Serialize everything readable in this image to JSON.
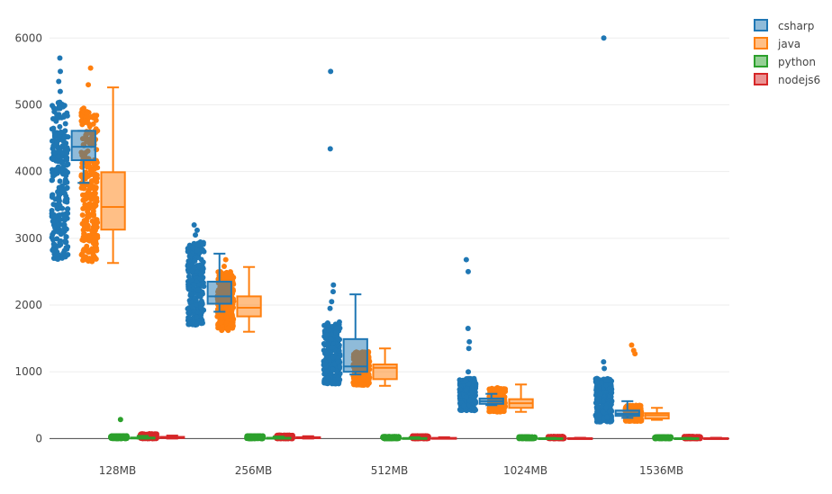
{
  "chart_data": {
    "type": "box",
    "categories": [
      "128MB",
      "256MB",
      "512MB",
      "1024MB",
      "1536MB"
    ],
    "ylim": [
      -170,
      6300
    ],
    "yticks": [
      0,
      1000,
      2000,
      3000,
      4000,
      5000,
      6000
    ],
    "ytick_labels": [
      "0",
      "1000",
      "2000",
      "3000",
      "4000",
      "5000",
      "6000"
    ],
    "grid": true,
    "legend_placement": "top-right",
    "boxpoints": "all",
    "series": [
      {
        "name": "csharp",
        "color": "#1f77b4",
        "boxes": [
          {
            "min": 3830,
            "q1": 4170,
            "median": 4370,
            "q3": 4610,
            "max": 4610,
            "cloud_low": 2680,
            "cloud_high": 5050,
            "outliers": [
              5200,
              5350,
              5500,
              5700
            ]
          },
          {
            "min": 1900,
            "q1": 2020,
            "median": 2130,
            "q3": 2350,
            "max": 2770,
            "cloud_low": 1700,
            "cloud_high": 2950,
            "outliers": [
              3050,
              3120,
              3200
            ]
          },
          {
            "min": 960,
            "q1": 1000,
            "median": 1080,
            "q3": 1490,
            "max": 2160,
            "cloud_low": 820,
            "cloud_high": 1750,
            "outliers": [
              1950,
              2050,
              2200,
              2300,
              4340,
              5500
            ]
          },
          {
            "min": 500,
            "q1": 520,
            "median": 560,
            "q3": 600,
            "max": 670,
            "cloud_low": 420,
            "cloud_high": 900,
            "outliers": [
              1000,
              1350,
              1450,
              1650,
              2500,
              2680
            ]
          },
          {
            "min": 310,
            "q1": 340,
            "median": 370,
            "q3": 420,
            "max": 560,
            "cloud_low": 250,
            "cloud_high": 900,
            "outliers": [
              1050,
              1150,
              6000
            ]
          }
        ]
      },
      {
        "name": "java",
        "color": "#ff7f0e",
        "boxes": [
          {
            "min": 2630,
            "q1": 3130,
            "median": 3470,
            "q3": 3990,
            "max": 5260,
            "cloud_low": 2650,
            "cloud_high": 4950,
            "outliers": [
              5300,
              5550
            ]
          },
          {
            "min": 1600,
            "q1": 1830,
            "median": 1960,
            "q3": 2130,
            "max": 2570,
            "cloud_low": 1620,
            "cloud_high": 2500,
            "outliers": [
              2580,
              2680
            ]
          },
          {
            "min": 790,
            "q1": 890,
            "median": 1060,
            "q3": 1110,
            "max": 1350,
            "cloud_low": 800,
            "cloud_high": 1300,
            "outliers": []
          },
          {
            "min": 400,
            "q1": 460,
            "median": 530,
            "q3": 590,
            "max": 810,
            "cloud_low": 400,
            "cloud_high": 760,
            "outliers": []
          },
          {
            "min": 280,
            "q1": 300,
            "median": 350,
            "q3": 380,
            "max": 460,
            "cloud_low": 260,
            "cloud_high": 500,
            "outliers": [
              1270,
              1320,
              1400
            ]
          }
        ]
      },
      {
        "name": "python",
        "color": "#2ca02c",
        "boxes": [
          {
            "min": 0,
            "q1": 5,
            "median": 10,
            "q3": 15,
            "max": 40,
            "cloud_low": 0,
            "cloud_high": 40,
            "outliers": [
              285
            ]
          },
          {
            "min": 0,
            "q1": 5,
            "median": 8,
            "q3": 12,
            "max": 30,
            "cloud_low": 0,
            "cloud_high": 40,
            "outliers": []
          },
          {
            "min": 0,
            "q1": 3,
            "median": 5,
            "q3": 8,
            "max": 20,
            "cloud_low": 0,
            "cloud_high": 30,
            "outliers": []
          },
          {
            "min": 0,
            "q1": 2,
            "median": 3,
            "q3": 5,
            "max": 10,
            "cloud_low": 0,
            "cloud_high": 25,
            "outliers": []
          },
          {
            "min": 0,
            "q1": 2,
            "median": 3,
            "q3": 5,
            "max": 10,
            "cloud_low": 0,
            "cloud_high": 25,
            "outliers": []
          }
        ]
      },
      {
        "name": "nodejs6",
        "color": "#d62728",
        "boxes": [
          {
            "min": 0,
            "q1": 8,
            "median": 15,
            "q3": 25,
            "max": 45,
            "cloud_low": 0,
            "cloud_high": 70,
            "outliers": []
          },
          {
            "min": 0,
            "q1": 5,
            "median": 10,
            "q3": 20,
            "max": 35,
            "cloud_low": 0,
            "cloud_high": 50,
            "outliers": []
          },
          {
            "min": 0,
            "q1": 3,
            "median": 6,
            "q3": 10,
            "max": 20,
            "cloud_low": 0,
            "cloud_high": 40,
            "outliers": []
          },
          {
            "min": 0,
            "q1": 2,
            "median": 4,
            "q3": 6,
            "max": 12,
            "cloud_low": 0,
            "cloud_high": 30,
            "outliers": []
          },
          {
            "min": 0,
            "q1": 2,
            "median": 4,
            "q3": 6,
            "max": 12,
            "cloud_low": 0,
            "cloud_high": 30,
            "outliers": []
          }
        ]
      }
    ]
  }
}
